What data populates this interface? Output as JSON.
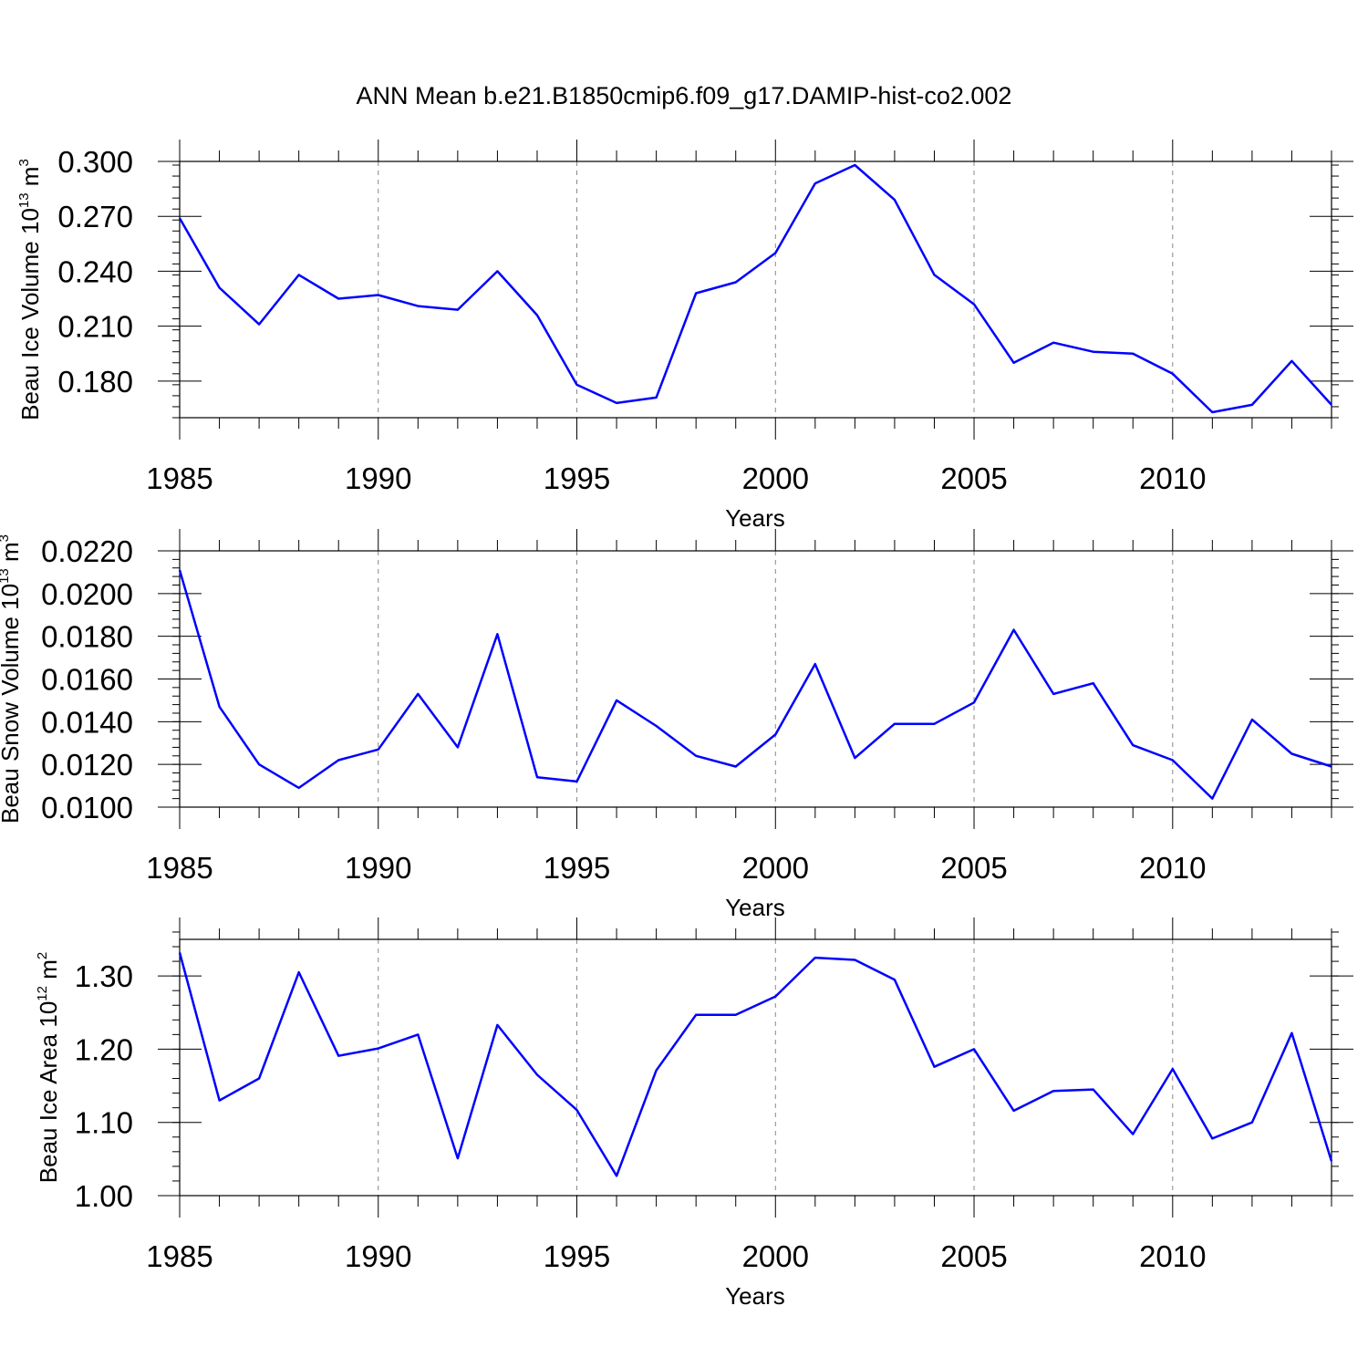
{
  "title": "ANN Mean b.e21.B1850cmip6.f09_g17.DAMIP-hist-co2.002",
  "colors": {
    "line": "#0000ff",
    "grid": "#888888",
    "axis": "#000000"
  },
  "chart_data": [
    {
      "type": "line",
      "ylabel": {
        "text": "Beau Ice Volume 10",
        "exp1": "13",
        "mid": " m",
        "exp2": "3"
      },
      "xlabel": "Years",
      "xlim": [
        1985,
        2014
      ],
      "ylim": [
        0.16,
        0.3
      ],
      "yticks": [
        0.18,
        0.21,
        0.24,
        0.27,
        0.3
      ],
      "yticklabels": [
        "0.180",
        "0.210",
        "0.240",
        "0.270",
        "0.300"
      ],
      "yminor": 0.006,
      "xticks": [
        1985,
        1990,
        1995,
        2000,
        2005,
        2010
      ],
      "xticklabels": [
        "1985",
        "1990",
        "1995",
        "2000",
        "2005",
        "2010"
      ],
      "grid": "vertical dashed",
      "x": [
        1985,
        1986,
        1987,
        1988,
        1989,
        1990,
        1991,
        1992,
        1993,
        1994,
        1995,
        1996,
        1997,
        1998,
        1999,
        2000,
        2001,
        2002,
        2003,
        2004,
        2005,
        2006,
        2007,
        2008,
        2009,
        2010,
        2011,
        2012,
        2013,
        2014
      ],
      "y": [
        0.269,
        0.231,
        0.211,
        0.238,
        0.225,
        0.227,
        0.221,
        0.219,
        0.24,
        0.216,
        0.178,
        0.168,
        0.171,
        0.228,
        0.234,
        0.25,
        0.288,
        0.298,
        0.279,
        0.238,
        0.222,
        0.19,
        0.201,
        0.196,
        0.195,
        0.184,
        0.163,
        0.167,
        0.191,
        0.167
      ]
    },
    {
      "type": "line",
      "ylabel": {
        "text": "Beau Snow Volume 10",
        "exp1": "13",
        "mid": " m",
        "exp2": "3"
      },
      "xlabel": "Years",
      "xlim": [
        1985,
        2014
      ],
      "ylim": [
        0.01,
        0.022
      ],
      "yticks": [
        0.01,
        0.012,
        0.014,
        0.016,
        0.018,
        0.02,
        0.022
      ],
      "yticklabels": [
        "0.0100",
        "0.0120",
        "0.0140",
        "0.0160",
        "0.0180",
        "0.0200",
        "0.0220"
      ],
      "yminor": 0.0004,
      "xticks": [
        1985,
        1990,
        1995,
        2000,
        2005,
        2010
      ],
      "xticklabels": [
        "1985",
        "1990",
        "1995",
        "2000",
        "2005",
        "2010"
      ],
      "grid": "vertical dashed",
      "x": [
        1985,
        1986,
        1987,
        1988,
        1989,
        1990,
        1991,
        1992,
        1993,
        1994,
        1995,
        1996,
        1997,
        1998,
        1999,
        2000,
        2001,
        2002,
        2003,
        2004,
        2005,
        2006,
        2007,
        2008,
        2009,
        2010,
        2011,
        2012,
        2013,
        2014
      ],
      "y": [
        0.0211,
        0.0147,
        0.012,
        0.0109,
        0.0122,
        0.0127,
        0.0153,
        0.0128,
        0.0181,
        0.0114,
        0.0112,
        0.015,
        0.0138,
        0.0124,
        0.0119,
        0.0134,
        0.0167,
        0.0123,
        0.0139,
        0.0139,
        0.0149,
        0.0183,
        0.0153,
        0.0158,
        0.0129,
        0.0122,
        0.0104,
        0.0141,
        0.0125,
        0.0119
      ]
    },
    {
      "type": "line",
      "ylabel": {
        "text": "Beau Ice Area 10",
        "exp1": "12",
        "mid": " m",
        "exp2": "2"
      },
      "xlabel": "Years",
      "xlim": [
        1985,
        2014
      ],
      "ylim": [
        1.0,
        1.35
      ],
      "yticks": [
        1.0,
        1.1,
        1.2,
        1.3
      ],
      "yticklabels": [
        "1.00",
        "1.10",
        "1.20",
        "1.30"
      ],
      "yminor": 0.02,
      "xticks": [
        1985,
        1990,
        1995,
        2000,
        2005,
        2010
      ],
      "xticklabels": [
        "1985",
        "1990",
        "1995",
        "2000",
        "2005",
        "2010"
      ],
      "grid": "vertical dashed",
      "x": [
        1985,
        1986,
        1987,
        1988,
        1989,
        1990,
        1991,
        1992,
        1993,
        1994,
        1995,
        1996,
        1997,
        1998,
        1999,
        2000,
        2001,
        2002,
        2003,
        2004,
        2005,
        2006,
        2007,
        2008,
        2009,
        2010,
        2011,
        2012,
        2013,
        2014
      ],
      "y": [
        1.332,
        1.13,
        1.16,
        1.305,
        1.191,
        1.201,
        1.22,
        1.051,
        1.233,
        1.165,
        1.117,
        1.027,
        1.171,
        1.247,
        1.247,
        1.272,
        1.325,
        1.322,
        1.295,
        1.176,
        1.2,
        1.116,
        1.143,
        1.145,
        1.084,
        1.173,
        1.078,
        1.1,
        1.222,
        1.047
      ]
    }
  ]
}
